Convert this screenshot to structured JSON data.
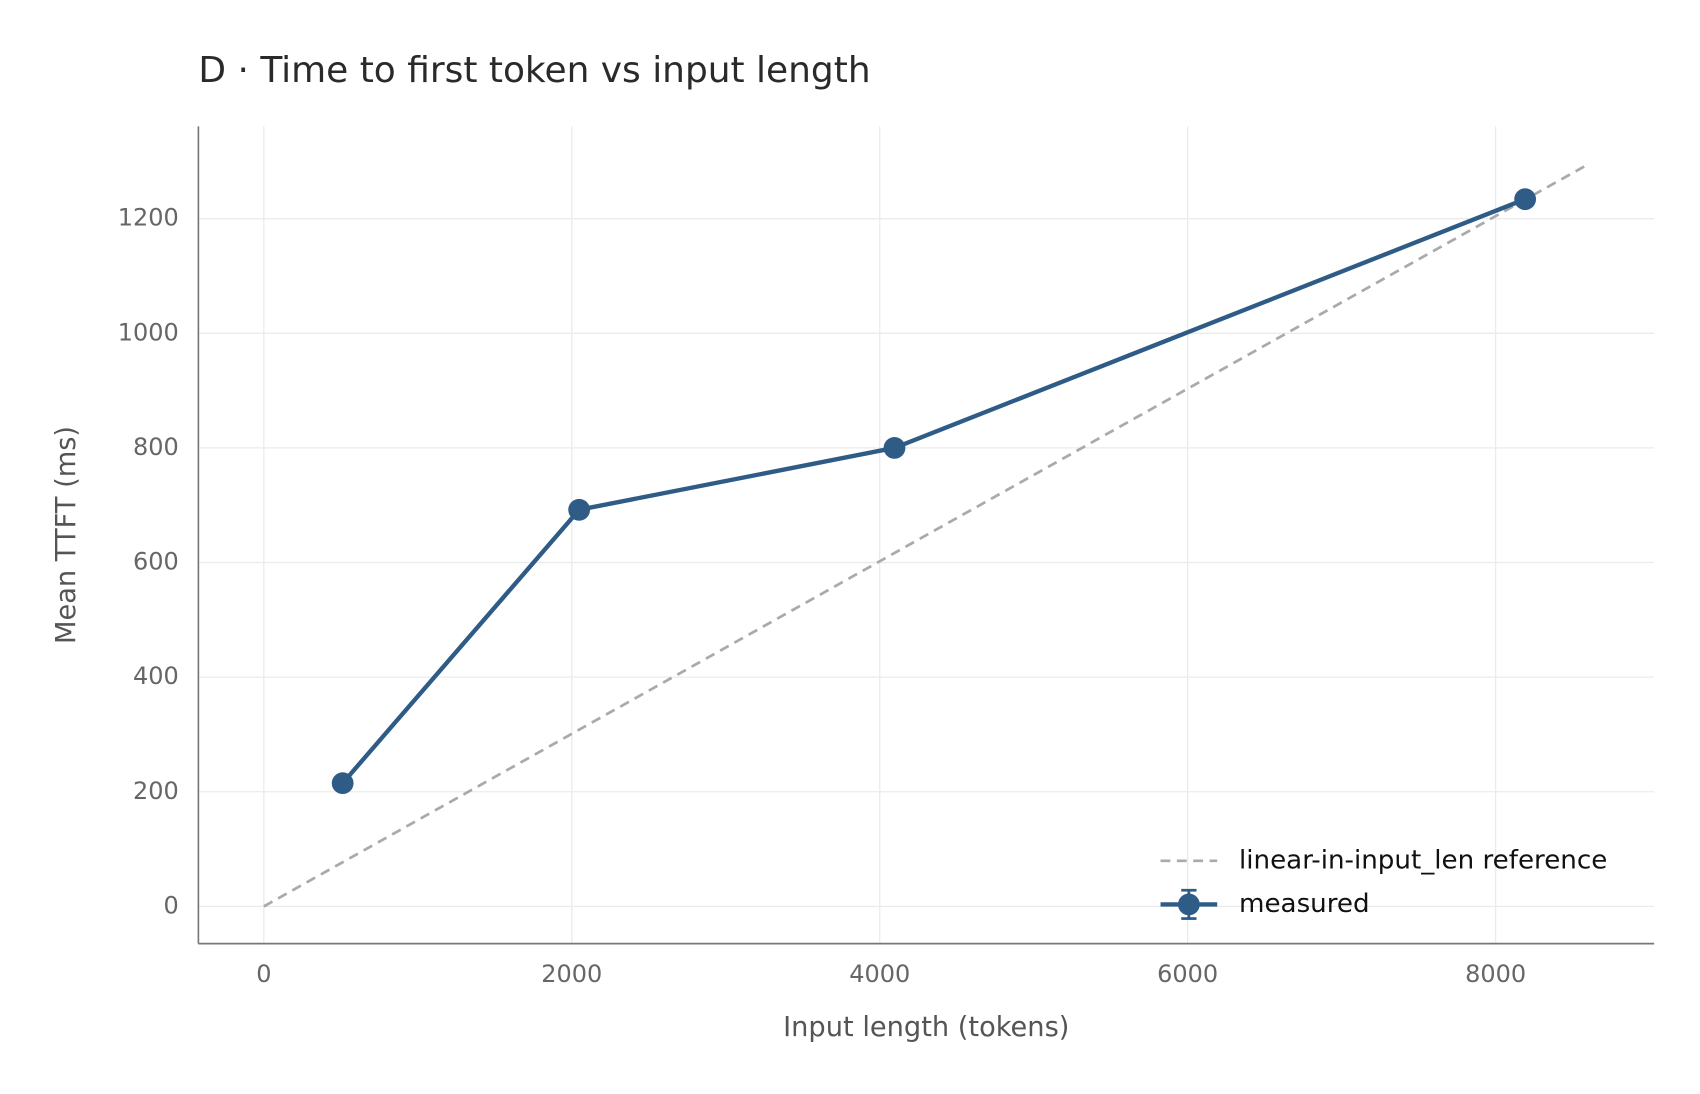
{
  "chart_data": {
    "type": "line",
    "title": "D · Time to first token vs input length",
    "xlabel": "Input length (tokens)",
    "ylabel": "Mean TTFT (ms)",
    "series": [
      {
        "name": "linear-in-input_len reference",
        "color": "#aaaaaa",
        "dashed": true,
        "markers": false,
        "x": [
          0,
          8602
        ],
        "values": [
          0,
          1295
        ]
      },
      {
        "name": "measured",
        "color": "#2e5c87",
        "dashed": false,
        "markers": true,
        "x": [
          512,
          2048,
          4096,
          8192
        ],
        "values": [
          215,
          692,
          800,
          1234
        ]
      }
    ],
    "xlim": [
      -425,
      9030
    ],
    "ylim": [
      -65,
      1361
    ],
    "xticks": [
      0,
      2000,
      4000,
      6000,
      8000
    ],
    "yticks": [
      0,
      200,
      400,
      600,
      800,
      1000,
      1200
    ],
    "grid": true,
    "legend_loc": "lower right"
  }
}
